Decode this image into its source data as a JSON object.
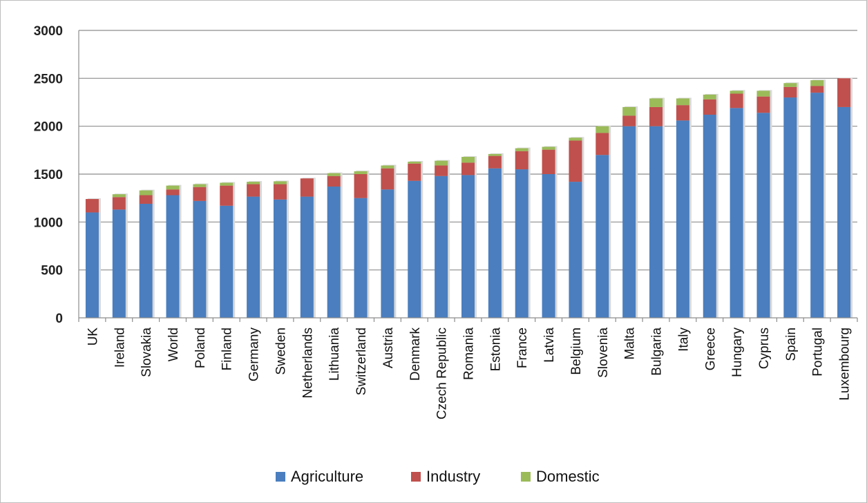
{
  "chart_data": {
    "type": "bar",
    "stacked": true,
    "title": "",
    "xlabel": "",
    "ylabel": "",
    "ylim": [
      0,
      3000
    ],
    "y_ticks": [
      0,
      500,
      1000,
      1500,
      2000,
      2500,
      3000
    ],
    "grid": true,
    "legend_position": "bottom",
    "categories": [
      "UK",
      "Ireland",
      "Slovakia",
      "World",
      "Poland",
      "Finland",
      "Germany",
      "Sweden",
      "Netherlands",
      "Lithuania",
      "Switzerland",
      "Austria",
      "Denmark",
      "Czech Republic",
      "Romania",
      "Estonia",
      "France",
      "Latvia",
      "Belgium",
      "Slovenia",
      "Malta",
      "Bulgaria",
      "Italy",
      "Greece",
      "Hungary",
      "Cyprus",
      "Spain",
      "Portugal",
      "Luxembourg"
    ],
    "series": [
      {
        "name": "Agriculture",
        "color": "#4a7ebf",
        "values": [
          1100,
          1130,
          1190,
          1280,
          1220,
          1170,
          1265,
          1235,
          1265,
          1370,
          1250,
          1340,
          1430,
          1480,
          1490,
          1560,
          1550,
          1500,
          1420,
          1700,
          2000,
          2000,
          2060,
          2120,
          2190,
          2140,
          2300,
          2350,
          2200
        ]
      },
      {
        "name": "Industry",
        "color": "#c0504d",
        "values": [
          140,
          130,
          90,
          60,
          145,
          210,
          130,
          160,
          190,
          110,
          250,
          220,
          180,
          110,
          130,
          130,
          190,
          255,
          430,
          230,
          110,
          200,
          160,
          160,
          150,
          170,
          110,
          70,
          300
        ]
      },
      {
        "name": "Domestic",
        "color": "#9bbb59",
        "values": [
          0,
          30,
          50,
          40,
          30,
          30,
          25,
          30,
          0,
          30,
          30,
          30,
          20,
          50,
          60,
          20,
          30,
          30,
          30,
          70,
          90,
          90,
          70,
          50,
          30,
          60,
          40,
          60,
          0
        ]
      }
    ]
  }
}
